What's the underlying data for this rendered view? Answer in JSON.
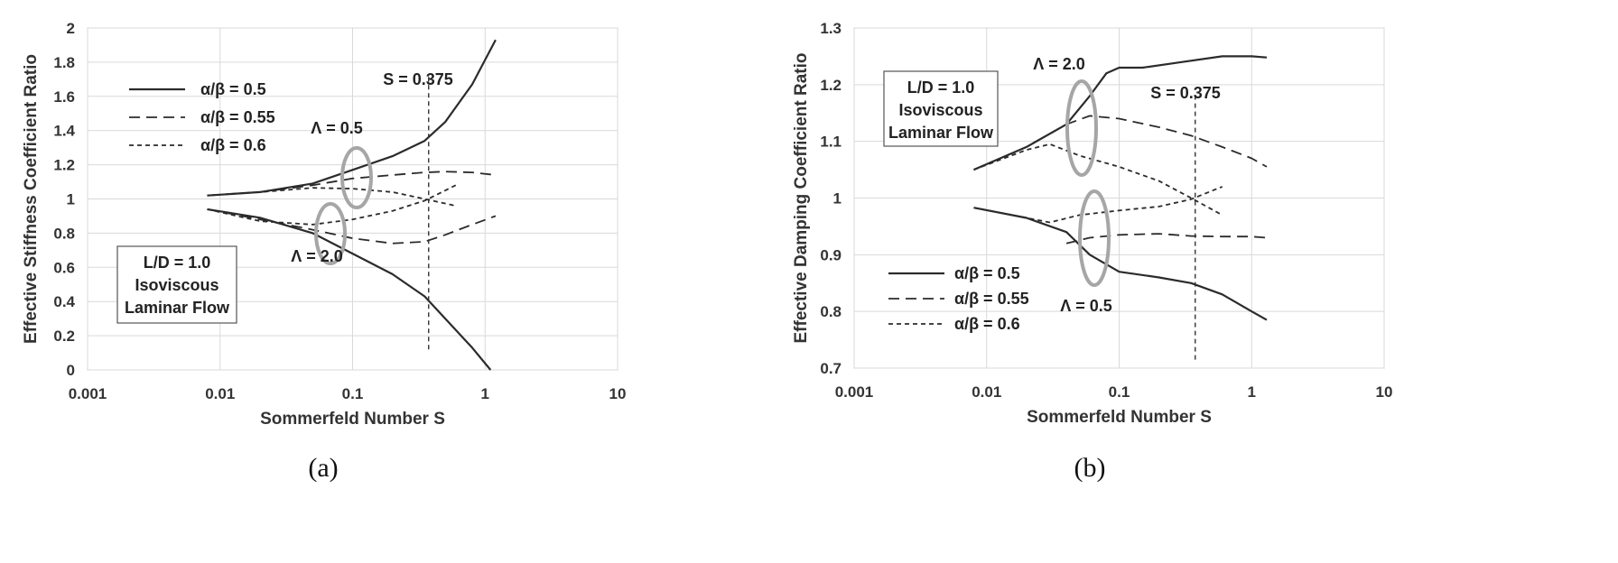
{
  "chart_data": [
    {
      "type": "line",
      "panel_caption": "(a)",
      "xlabel": "Sommerfeld Number S",
      "ylabel": "Effective Stiffness Coefficient Ratio",
      "x_scale": "log",
      "xlim": [
        0.001,
        10
      ],
      "ylim": [
        0,
        2
      ],
      "x_ticks": [
        "0.001",
        "0.01",
        "0.1",
        "1",
        "10"
      ],
      "y_ticks": [
        "0",
        "0.2",
        "0.4",
        "0.6",
        "0.8",
        "1",
        "1.2",
        "1.4",
        "1.6",
        "1.8",
        "2"
      ],
      "grid": true,
      "legend_position": "top-left",
      "legend": [
        {
          "label": "α/β = 0.5",
          "style": "solid"
        },
        {
          "label": "α/β = 0.55",
          "style": "long-dash"
        },
        {
          "label": "α/β = 0.6",
          "style": "short-dash"
        }
      ],
      "series": [
        {
          "name": "α/β = 0.5",
          "group": "Λ = 0.5",
          "style": "solid",
          "x": [
            0.008,
            0.02,
            0.05,
            0.1,
            0.2,
            0.35,
            0.5,
            0.8,
            1.2
          ],
          "y": [
            1.02,
            1.04,
            1.09,
            1.17,
            1.25,
            1.34,
            1.45,
            1.67,
            1.93
          ]
        },
        {
          "name": "α/β = 0.55",
          "group": "Λ = 0.5",
          "style": "long-dash",
          "x": [
            0.008,
            0.02,
            0.05,
            0.1,
            0.2,
            0.35,
            0.5,
            0.8,
            1.2
          ],
          "y": [
            1.02,
            1.04,
            1.08,
            1.12,
            1.14,
            1.155,
            1.16,
            1.155,
            1.14
          ]
        },
        {
          "name": "α/β = 0.6",
          "group": "Λ = 0.5",
          "style": "short-dash",
          "x": [
            0.008,
            0.02,
            0.05,
            0.1,
            0.2,
            0.35,
            0.6
          ],
          "y": [
            1.02,
            1.04,
            1.065,
            1.06,
            1.04,
            1.0,
            0.96
          ]
        },
        {
          "name": "α/β = 0.5",
          "group": "Λ = 2.0",
          "style": "solid",
          "x": [
            0.008,
            0.02,
            0.05,
            0.1,
            0.2,
            0.35,
            0.5,
            0.8,
            1.1
          ],
          "y": [
            0.94,
            0.89,
            0.8,
            0.68,
            0.56,
            0.43,
            0.3,
            0.13,
            0.0
          ]
        },
        {
          "name": "α/β = 0.55",
          "group": "Λ = 2.0",
          "style": "long-dash",
          "x": [
            0.008,
            0.02,
            0.05,
            0.1,
            0.2,
            0.35,
            0.5,
            0.8,
            1.2
          ],
          "y": [
            0.94,
            0.88,
            0.82,
            0.77,
            0.74,
            0.75,
            0.79,
            0.85,
            0.9
          ]
        },
        {
          "name": "α/β = 0.6",
          "group": "Λ = 2.0",
          "style": "short-dash",
          "x": [
            0.008,
            0.02,
            0.05,
            0.1,
            0.2,
            0.35,
            0.6
          ],
          "y": [
            0.94,
            0.87,
            0.85,
            0.88,
            0.93,
            0.99,
            1.08
          ]
        }
      ],
      "annotations": {
        "ref_line_label": "S = 0.375",
        "ref_line_x": 0.375,
        "ref_line_y": [
          0.12,
          1.73
        ],
        "group_high_label": "Λ = 0.5",
        "group_low_label": "Λ = 2.0",
        "box_lines": [
          "L/D = 1.0",
          "Isoviscous",
          "Laminar Flow"
        ]
      }
    },
    {
      "type": "line",
      "panel_caption": "(b)",
      "xlabel": "Sommerfeld Number S",
      "ylabel": "Effective Damping Coefficient Ratio",
      "x_scale": "log",
      "xlim": [
        0.001,
        10
      ],
      "ylim": [
        0.7,
        1.3
      ],
      "x_ticks": [
        "0.001",
        "0.01",
        "0.1",
        "1",
        "10"
      ],
      "y_ticks": [
        "0.7",
        "0.8",
        "0.9",
        "1",
        "1.1",
        "1.2",
        "1.3"
      ],
      "grid": true,
      "legend_position": "bottom-left",
      "legend": [
        {
          "label": "α/β = 0.5",
          "style": "solid"
        },
        {
          "label": "α/β = 0.55",
          "style": "long-dash"
        },
        {
          "label": "α/β = 0.6",
          "style": "short-dash"
        }
      ],
      "series": [
        {
          "name": "α/β = 0.5",
          "group": "Λ = 2.0",
          "style": "solid",
          "x": [
            0.008,
            0.02,
            0.04,
            0.06,
            0.08,
            0.1,
            0.15,
            0.3,
            0.6,
            1.0,
            1.3
          ],
          "y": [
            1.05,
            1.09,
            1.13,
            1.18,
            1.22,
            1.23,
            1.23,
            1.24,
            1.25,
            1.25,
            1.248
          ]
        },
        {
          "name": "α/β = 0.55",
          "group": "Λ = 2.0",
          "style": "long-dash",
          "x": [
            0.008,
            0.02,
            0.04,
            0.06,
            0.1,
            0.2,
            0.35,
            0.6,
            1.0,
            1.3
          ],
          "y": [
            1.05,
            1.09,
            1.13,
            1.145,
            1.14,
            1.125,
            1.11,
            1.09,
            1.07,
            1.055
          ]
        },
        {
          "name": "α/β = 0.6",
          "group": "Λ = 2.0",
          "style": "short-dash",
          "x": [
            0.008,
            0.02,
            0.03,
            0.05,
            0.1,
            0.2,
            0.35,
            0.6
          ],
          "y": [
            1.05,
            1.085,
            1.095,
            1.075,
            1.055,
            1.03,
            1.0,
            0.97
          ]
        },
        {
          "name": "α/β = 0.5",
          "group": "Λ = 0.5",
          "style": "solid",
          "x": [
            0.008,
            0.02,
            0.04,
            0.06,
            0.1,
            0.2,
            0.35,
            0.6,
            1.0,
            1.3
          ],
          "y": [
            0.983,
            0.965,
            0.94,
            0.9,
            0.87,
            0.86,
            0.85,
            0.83,
            0.8,
            0.785
          ]
        },
        {
          "name": "α/β = 0.55",
          "group": "Λ = 0.5",
          "style": "long-dash",
          "x": [
            0.04,
            0.06,
            0.1,
            0.2,
            0.35,
            0.6,
            1.0,
            1.3
          ],
          "y": [
            0.92,
            0.93,
            0.935,
            0.937,
            0.933,
            0.932,
            0.932,
            0.93
          ]
        },
        {
          "name": "α/β = 0.6",
          "group": "Λ = 0.5",
          "style": "short-dash",
          "x": [
            0.008,
            0.02,
            0.03,
            0.05,
            0.1,
            0.2,
            0.35,
            0.6
          ],
          "y": [
            0.983,
            0.965,
            0.957,
            0.97,
            0.978,
            0.985,
            0.998,
            1.02
          ]
        }
      ],
      "annotations": {
        "ref_line_label": "S = 0.375",
        "ref_line_x": 0.375,
        "ref_line_y": [
          0.715,
          1.18
        ],
        "group_high_label": "Λ = 2.0",
        "group_low_label": "Λ = 0.5",
        "box_lines": [
          "L/D = 1.0",
          "Isoviscous",
          "Laminar Flow"
        ]
      }
    }
  ]
}
